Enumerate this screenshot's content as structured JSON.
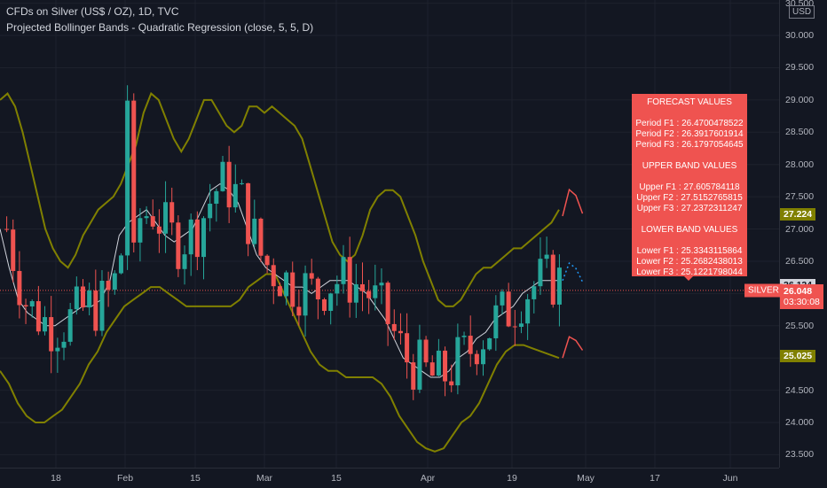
{
  "header": {
    "symbol_line": "CFDs on Silver (US$ / OZ), 1D, TVC",
    "indicator_line": "Projected Bollinger Bands - Quadratic Regression (close, 5, 5, D)"
  },
  "currency_label": "USD",
  "y_axis": {
    "min": 23.3,
    "max": 30.55,
    "ticks": [
      "23.500",
      "24.000",
      "24.500",
      "25.000",
      "25.500",
      "26.000",
      "26.500",
      "27.000",
      "27.500",
      "28.000",
      "28.500",
      "29.000",
      "29.500",
      "30.000",
      "30.500"
    ]
  },
  "x_axis": {
    "labels": [
      "18",
      "Feb",
      "15",
      "Mar",
      "15",
      "Apr",
      "19",
      "May",
      "17",
      "Jun"
    ]
  },
  "badges": {
    "upper_band": "27.224",
    "lower_band": "25.025",
    "forecast": "26.124",
    "last_price": "26.048",
    "countdown": "03:30:08",
    "symbol_tag": "SILVER"
  },
  "forecast_panel": {
    "forecast_title": "FORECAST VALUES",
    "forecast_lines": [
      "Period F1 : 26.4700478522",
      "Period F2 : 26.3917601914",
      "Period F3 : 26.1797054645"
    ],
    "upper_title": "UPPER BAND VALUES",
    "upper_lines": [
      "Upper F1 : 27.605784118",
      "Upper F2 : 27.5152765815",
      "Upper F3 : 27.2372311247"
    ],
    "lower_title": "LOWER BAND VALUES",
    "lower_lines": [
      "Lower F1 : 25.3343115864",
      "Lower F2 : 25.2682438013",
      "Lower F3 : 25.1221798044"
    ]
  },
  "colors": {
    "background": "#131722",
    "up_candle": "#26a69a",
    "down_candle": "#ef5350",
    "band_line": "#808000",
    "basis_line": "#d1d4dc",
    "forecast_dots": "#2196f3",
    "panel": "#ef5350"
  },
  "chart_data": {
    "type": "candlestick",
    "upper_band": [
      29.0,
      29.1,
      28.9,
      28.5,
      28.0,
      27.5,
      27.0,
      26.7,
      26.5,
      26.4,
      26.6,
      26.9,
      27.1,
      27.3,
      27.4,
      27.5,
      27.7,
      28.0,
      28.3,
      28.8,
      29.1,
      29.0,
      28.7,
      28.4,
      28.2,
      28.4,
      28.7,
      29.0,
      29.0,
      28.8,
      28.6,
      28.5,
      28.6,
      28.9,
      28.9,
      28.8,
      28.9,
      28.8,
      28.7,
      28.6,
      28.4,
      28.0,
      27.6,
      27.2,
      26.8,
      26.6,
      26.5,
      26.6,
      26.9,
      27.3,
      27.5,
      27.6,
      27.6,
      27.5,
      27.2,
      26.9,
      26.5,
      26.2,
      25.9,
      25.8,
      25.8,
      25.9,
      26.1,
      26.3,
      26.4,
      26.4,
      26.5,
      26.6,
      26.7,
      26.7,
      26.8,
      26.9,
      27.0,
      27.1,
      27.3
    ],
    "lower_band": [
      24.8,
      24.6,
      24.3,
      24.1,
      24.0,
      24.0,
      24.1,
      24.2,
      24.4,
      24.6,
      24.9,
      25.1,
      25.4,
      25.6,
      25.8,
      25.9,
      26.0,
      26.1,
      26.1,
      26.0,
      25.9,
      25.8,
      25.8,
      25.8,
      25.8,
      25.8,
      25.8,
      25.9,
      26.1,
      26.2,
      26.3,
      26.3,
      26.0,
      25.7,
      25.4,
      25.1,
      24.9,
      24.8,
      24.8,
      24.7,
      24.7,
      24.7,
      24.7,
      24.6,
      24.4,
      24.1,
      23.9,
      23.7,
      23.6,
      23.55,
      23.6,
      23.8,
      24.0,
      24.1,
      24.3,
      24.6,
      24.9,
      25.1,
      25.2,
      25.2,
      25.15,
      25.1,
      25.05,
      25.0
    ],
    "basis": [
      27.0,
      26.4,
      25.9,
      25.7,
      25.6,
      25.5,
      25.5,
      25.6,
      25.7,
      25.8,
      25.8,
      25.9,
      26.2,
      26.9,
      27.1,
      27.2,
      27.3,
      27.1,
      26.9,
      26.8,
      26.9,
      27.0,
      27.3,
      27.6,
      27.7,
      27.6,
      27.4,
      27.0,
      26.6,
      26.4,
      26.3,
      26.2,
      26.1,
      26.1,
      26.0,
      26.1,
      26.2,
      26.2,
      26.2,
      26.1,
      26.0,
      25.8,
      25.6,
      25.3,
      25.0,
      24.9,
      24.8,
      24.7,
      24.7,
      24.8,
      25.0,
      25.1,
      25.3,
      25.4,
      25.6,
      25.7,
      25.8,
      26.0,
      26.1,
      26.2,
      26.2,
      26.2
    ],
    "projection": {
      "upper": [
        27.2,
        27.61,
        27.52,
        27.24
      ],
      "lower": [
        25.0,
        25.33,
        25.27,
        25.12
      ],
      "forecast": [
        26.2,
        26.47,
        26.39,
        26.18
      ]
    }
  }
}
